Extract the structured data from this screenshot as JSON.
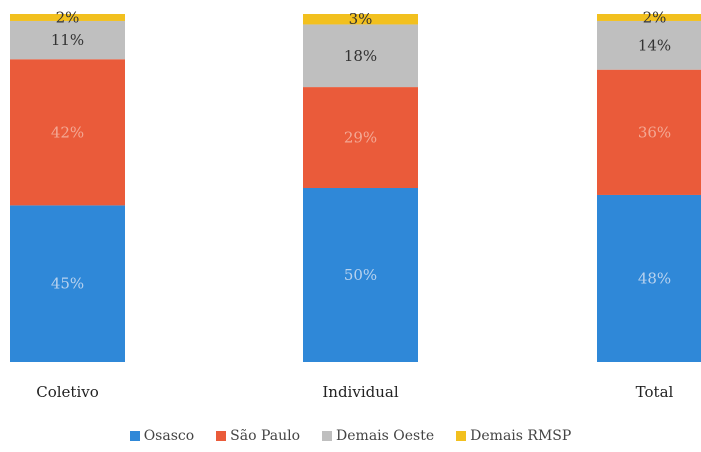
{
  "chart_data": {
    "type": "stacked-bar-100",
    "categories": [
      "Coletivo",
      "Individual",
      "Total"
    ],
    "series": [
      {
        "name": "Osasco",
        "color": "#2f88d8",
        "values": [
          45,
          50,
          48
        ],
        "labels": [
          "45%",
          "50%",
          "48%"
        ]
      },
      {
        "name": "São Paulo",
        "color": "#ea5b3a",
        "values": [
          42,
          29,
          36
        ],
        "labels": [
          "42%",
          "29%",
          "36%"
        ]
      },
      {
        "name": "Demais Oeste",
        "color": "#bfbfbf",
        "values": [
          11,
          18,
          14
        ],
        "labels": [
          "11%",
          "18%",
          "14%"
        ]
      },
      {
        "name": "Demais RMSP",
        "color": "#f2c01e",
        "values": [
          2,
          3,
          2
        ],
        "labels": [
          "2%",
          "3%",
          "2%"
        ]
      }
    ],
    "ylim": [
      0,
      100
    ],
    "legend_position": "bottom"
  }
}
